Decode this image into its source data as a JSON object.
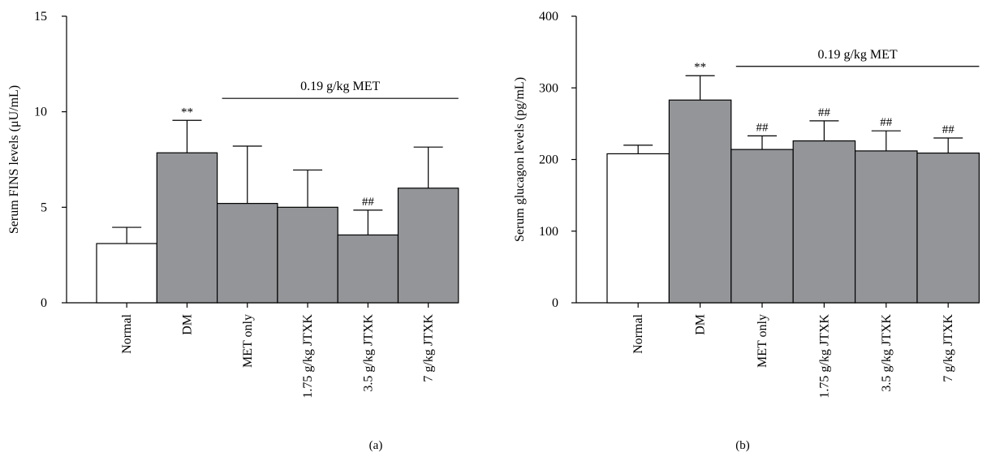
{
  "chart_data": [
    {
      "type": "bar",
      "panel_label": "(a)",
      "ylabel": "Serum FINS levels (μU/mL)",
      "xlabel": "",
      "ylim": [
        0,
        15
      ],
      "yticks": [
        0,
        5,
        10,
        15
      ],
      "grid": false,
      "categories": [
        "Normal",
        "DM",
        "MET only",
        "1.75 g/kg JTXK",
        "3.5 g/kg JTXK",
        "7 g/kg JTXK"
      ],
      "values": [
        3.1,
        7.85,
        5.2,
        5.0,
        3.55,
        6.0
      ],
      "error_upper": [
        3.95,
        9.55,
        8.2,
        6.95,
        4.85,
        8.15
      ],
      "bar_colors": [
        "#ffffff",
        "#939598",
        "#939598",
        "#939598",
        "#939598",
        "#939598"
      ],
      "annotations": [
        "",
        "**",
        "",
        "",
        "##",
        ""
      ],
      "bracket": {
        "label": "0.19 g/kg MET",
        "from": 2,
        "to": 5,
        "value": 10.7
      }
    },
    {
      "type": "bar",
      "panel_label": "(b)",
      "ylabel": "Serum glucagon levels (pg/mL)",
      "xlabel": "",
      "ylim": [
        0,
        400
      ],
      "yticks": [
        0,
        100,
        200,
        300,
        400
      ],
      "grid": false,
      "categories": [
        "Normal",
        "DM",
        "MET only",
        "1.75 g/kg JTXK",
        "3.5 g/kg JTXK",
        "7 g/kg JTXK"
      ],
      "values": [
        208,
        283,
        214,
        226,
        212,
        209
      ],
      "error_upper": [
        220,
        317,
        233,
        254,
        240,
        230
      ],
      "bar_colors": [
        "#ffffff",
        "#939598",
        "#939598",
        "#939598",
        "#939598",
        "#939598"
      ],
      "annotations": [
        "",
        "**",
        "##",
        "##",
        "##",
        "##"
      ],
      "bracket": {
        "label": "0.19 g/kg MET",
        "from": 2,
        "to": 5,
        "value": 330
      }
    }
  ]
}
